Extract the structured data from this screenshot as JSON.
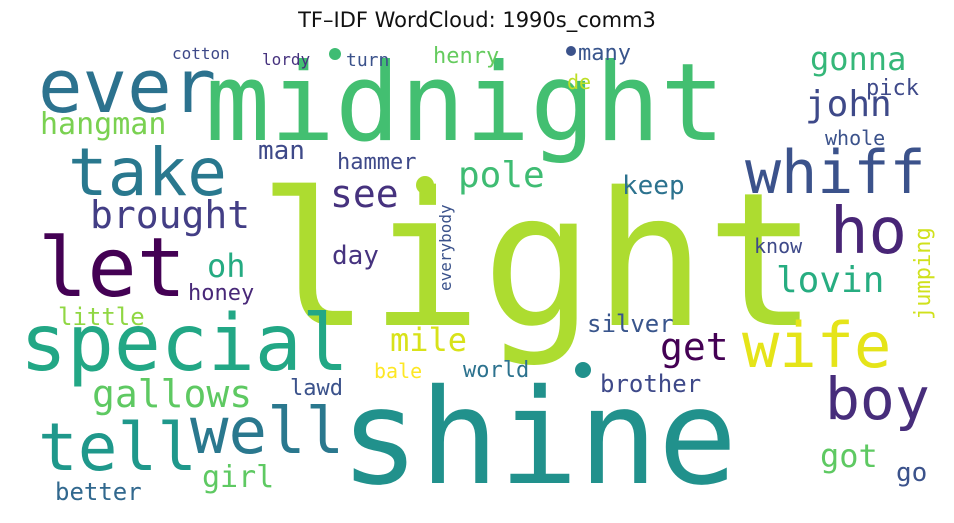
{
  "title": "TF–IDF WordCloud: 1990s_comm3",
  "words": [
    {
      "text": "light",
      "color": "#addc30"
    },
    {
      "text": "shine",
      "color": "#21918c"
    },
    {
      "text": "midnight",
      "color": "#43bf71"
    },
    {
      "text": "ever",
      "color": "#2c728e"
    },
    {
      "text": "take",
      "color": "#29788e"
    },
    {
      "text": "let",
      "color": "#440154"
    },
    {
      "text": "special",
      "color": "#22a785"
    },
    {
      "text": "tell",
      "color": "#1f988b"
    },
    {
      "text": "well",
      "color": "#2a788e"
    },
    {
      "text": "whiff",
      "color": "#3b528b"
    },
    {
      "text": "ho",
      "color": "#482576"
    },
    {
      "text": "wife",
      "color": "#e5e419"
    },
    {
      "text": "boy",
      "color": "#472d7b"
    },
    {
      "text": "brought",
      "color": "#433e85"
    },
    {
      "text": "gallows",
      "color": "#5ec962"
    },
    {
      "text": "hangman",
      "color": "#7ad151"
    },
    {
      "text": "john",
      "color": "#3e4989"
    },
    {
      "text": "gonna",
      "color": "#35b779"
    },
    {
      "text": "see",
      "color": "#46327e"
    },
    {
      "text": "pole",
      "color": "#3fbc73"
    },
    {
      "text": "lovin",
      "color": "#27ad81"
    },
    {
      "text": "get",
      "color": "#440154"
    },
    {
      "text": "mile",
      "color": "#d8e219"
    },
    {
      "text": "got",
      "color": "#5ec962"
    },
    {
      "text": "girl",
      "color": "#5ec962"
    },
    {
      "text": "oh",
      "color": "#25ab82"
    },
    {
      "text": "man",
      "color": "#3e4989"
    },
    {
      "text": "keep",
      "color": "#2c728e"
    },
    {
      "text": "silver",
      "color": "#39558c"
    },
    {
      "text": "brother",
      "color": "#3e4989"
    },
    {
      "text": "better",
      "color": "#31688e"
    },
    {
      "text": "go",
      "color": "#3b528b"
    },
    {
      "text": "hammer",
      "color": "#3e4989"
    },
    {
      "text": "day",
      "color": "#46337f"
    },
    {
      "text": "honey",
      "color": "#482878"
    },
    {
      "text": "little",
      "color": "#90d743"
    },
    {
      "text": "lawd",
      "color": "#3b528b"
    },
    {
      "text": "world",
      "color": "#2c728e"
    },
    {
      "text": "bale",
      "color": "#fde725"
    },
    {
      "text": "pick",
      "color": "#3e4989"
    },
    {
      "text": "whole",
      "color": "#3b528b"
    },
    {
      "text": "know",
      "color": "#3e4989"
    },
    {
      "text": "jumping",
      "color": "#d0e11c"
    },
    {
      "text": "everybody",
      "color": "#3b528b"
    },
    {
      "text": "henry",
      "color": "#65cb5e"
    },
    {
      "text": "many",
      "color": "#39558c"
    },
    {
      "text": "de",
      "color": "#bddf26"
    },
    {
      "text": "turn",
      "color": "#3b528b"
    },
    {
      "text": "lordy",
      "color": "#46327e"
    },
    {
      "text": "cotton",
      "color": "#3e4989"
    }
  ]
}
